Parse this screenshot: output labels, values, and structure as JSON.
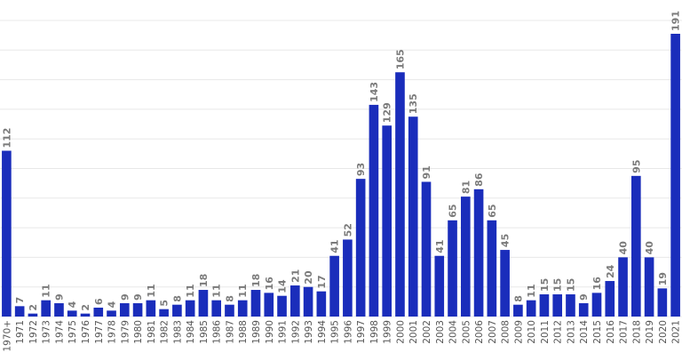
{
  "chart_data": {
    "type": "bar",
    "title": "",
    "xlabel": "",
    "ylabel": "",
    "ylim": [
      0,
      200
    ],
    "grid": true,
    "categories": [
      "1970+",
      "1971",
      "1972",
      "1973",
      "1974",
      "1975",
      "1976",
      "1977",
      "1978",
      "1979",
      "1980",
      "1981",
      "1982",
      "1983",
      "1984",
      "1985",
      "1986",
      "1987",
      "1988",
      "1989",
      "1990",
      "1991",
      "1992",
      "1993",
      "1994",
      "1995",
      "1996",
      "1997",
      "1998",
      "1999",
      "2000",
      "2001",
      "2002",
      "2003",
      "2004",
      "2005",
      "2006",
      "2007",
      "2008",
      "2009",
      "2010",
      "2011",
      "2012",
      "2013",
      "2014",
      "2015",
      "2016",
      "2017",
      "2018",
      "2019",
      "2020",
      "2021"
    ],
    "values": [
      112,
      7,
      2,
      11,
      9,
      4,
      2,
      6,
      4,
      9,
      9,
      11,
      5,
      8,
      11,
      18,
      11,
      8,
      11,
      18,
      16,
      14,
      21,
      20,
      17,
      41,
      52,
      93,
      143,
      129,
      165,
      135,
      91,
      41,
      65,
      81,
      86,
      65,
      45,
      8,
      11,
      15,
      15,
      15,
      9,
      16,
      24,
      40,
      95,
      40,
      19,
      191
    ],
    "colors": {
      "bar": "#1a2dbb",
      "label": "#7a7a7a",
      "grid": "#e8e8e8"
    }
  }
}
